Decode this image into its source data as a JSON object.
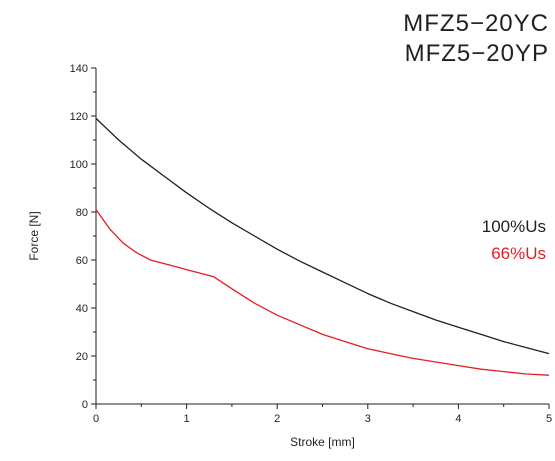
{
  "header": {
    "model_lines": [
      "MFZ5−20YC",
      "MFZ5−20YP"
    ]
  },
  "chart_data": {
    "type": "line",
    "title": "",
    "xlabel": "Stroke [mm]",
    "ylabel": "Force [N]",
    "xlim": [
      0,
      5
    ],
    "ylim": [
      0,
      140
    ],
    "xticks": [
      0,
      1,
      2,
      3,
      4,
      5
    ],
    "yticks": [
      0,
      20,
      40,
      60,
      80,
      100,
      120,
      140
    ],
    "grid": false,
    "legend_position": "right",
    "series": [
      {
        "name": "100%Us",
        "color": "#231f20",
        "x": [
          0,
          0.25,
          0.5,
          0.75,
          1.0,
          1.25,
          1.5,
          1.75,
          2.0,
          2.25,
          2.5,
          2.75,
          3.0,
          3.25,
          3.5,
          3.75,
          4.0,
          4.25,
          4.5,
          4.75,
          5.0
        ],
        "y": [
          119,
          110,
          102,
          95,
          88,
          81.5,
          75.5,
          70,
          64.5,
          59.5,
          55,
          50.5,
          46,
          42,
          38.5,
          35,
          32,
          29,
          26,
          23.5,
          21
        ]
      },
      {
        "name": "66%Us",
        "color": "#e31e24",
        "x": [
          0,
          0.15,
          0.3,
          0.45,
          0.6,
          0.8,
          1.0,
          1.2,
          1.3,
          1.5,
          1.75,
          2.0,
          2.25,
          2.5,
          2.75,
          3.0,
          3.25,
          3.5,
          3.75,
          4.0,
          4.25,
          4.5,
          4.75,
          5.0
        ],
        "y": [
          81,
          73,
          67,
          63,
          60,
          58,
          56,
          54,
          53,
          48,
          42,
          37,
          33,
          29,
          26,
          23,
          21,
          19,
          17.5,
          16,
          14.5,
          13.5,
          12.5,
          12
        ]
      }
    ]
  }
}
